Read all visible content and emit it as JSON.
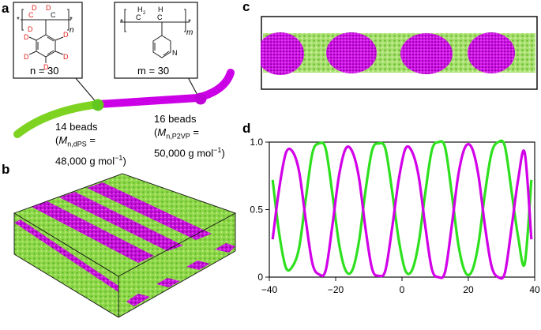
{
  "panels": {
    "a": "a",
    "b": "b",
    "c": "c",
    "d": "d"
  },
  "panel_a": {
    "dps_box": {
      "n_equals": "n = 30",
      "atom_labels": [
        "D",
        "D",
        "C",
        "C",
        "D",
        "D",
        "D",
        "D",
        "D",
        "D"
      ],
      "subscript": "n"
    },
    "p2vp_box": {
      "m_equals": "m = 30",
      "atom_labels": [
        "H",
        "C",
        "C",
        "H",
        "N"
      ],
      "h2": "2",
      "subscript": "m"
    },
    "dps_beads": {
      "line1": "14 beads",
      "mn_symbol": "M",
      "mn_sub": "n,dPS",
      "eq": " =",
      "value": "48,000 g mol",
      "exp": "−1",
      "close": ")"
    },
    "p2vp_beads": {
      "line1": "16 beads",
      "mn_symbol": "M",
      "mn_sub": "n,P2VP",
      "eq": " =",
      "value": "50,000 g mol",
      "exp": "−1",
      "close": ")"
    }
  },
  "colors": {
    "green": "#7ed321",
    "green_dark": "#62c81f",
    "magenta": "#cc00e6",
    "red_atoms": "#e0201c"
  },
  "chart_data": {
    "type": "line",
    "title": "",
    "xlabel": "",
    "ylabel": "",
    "xlim": [
      -40,
      40
    ],
    "ylim": [
      0,
      1
    ],
    "x_ticks": [
      "−40",
      "−20",
      "0",
      "20",
      "40"
    ],
    "y_ticks": [
      "0",
      "0.5",
      "1.0"
    ],
    "series": [
      {
        "color": "#2ee01e",
        "x": [
          -39,
          -37,
          -35,
          -33,
          -31,
          -29,
          -27,
          -25,
          -23,
          -21,
          -19,
          -17,
          -15,
          -13,
          -11,
          -9,
          -7,
          -5,
          -3,
          -1,
          1,
          3,
          5,
          7,
          9,
          11,
          13,
          15,
          17,
          19,
          21,
          23,
          25,
          27,
          29,
          31,
          33,
          35,
          37,
          39
        ],
        "values": [
          0.72,
          0.32,
          0.07,
          0.08,
          0.22,
          0.58,
          0.92,
          0.99,
          0.95,
          0.62,
          0.25,
          0.05,
          0.05,
          0.26,
          0.64,
          0.94,
          0.99,
          0.95,
          0.64,
          0.28,
          0.05,
          0.05,
          0.25,
          0.62,
          0.94,
          1.0,
          0.96,
          0.62,
          0.24,
          0.04,
          0.04,
          0.24,
          0.62,
          0.92,
          1.0,
          0.97,
          0.64,
          0.3,
          0.1,
          0.72
        ]
      },
      {
        "color": "#d200e8",
        "x": [
          -39,
          -37,
          -35,
          -33,
          -31,
          -29,
          -27,
          -25,
          -23,
          -21,
          -19,
          -17,
          -15,
          -13,
          -11,
          -9,
          -7,
          -5,
          -3,
          -1,
          1,
          3,
          5,
          7,
          9,
          11,
          13,
          15,
          17,
          19,
          21,
          23,
          25,
          27,
          29,
          31,
          33,
          35,
          37,
          39
        ],
        "values": [
          0.28,
          0.66,
          0.92,
          0.93,
          0.78,
          0.42,
          0.1,
          0.02,
          0.05,
          0.38,
          0.75,
          0.95,
          0.93,
          0.74,
          0.36,
          0.06,
          0.01,
          0.05,
          0.36,
          0.72,
          0.95,
          0.93,
          0.75,
          0.38,
          0.06,
          0.0,
          0.04,
          0.38,
          0.76,
          0.96,
          0.96,
          0.76,
          0.38,
          0.08,
          0.0,
          0.03,
          0.36,
          0.72,
          0.92,
          0.28
        ]
      }
    ]
  }
}
